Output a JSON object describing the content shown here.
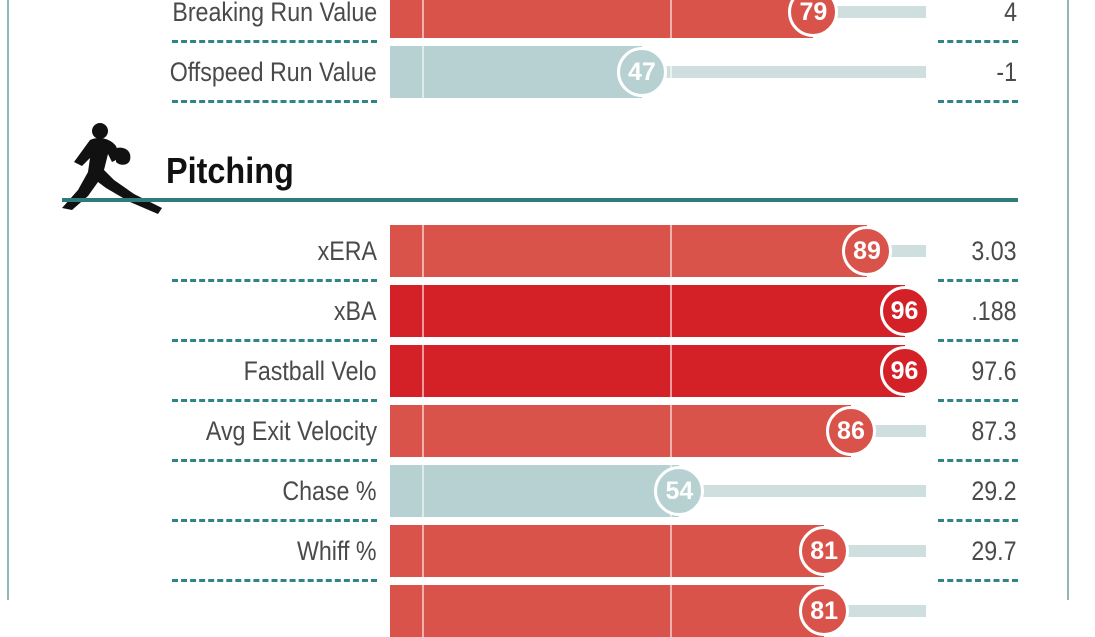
{
  "colors": {
    "frame": "#8fb7b5",
    "rule": "#2f7a7a",
    "dash": "#2f8585",
    "track": "#cfdfe0",
    "bar_above_average": "#d9534a",
    "bar_elite": "#d42027",
    "bar_average": "#b7d1d2"
  },
  "section": {
    "title": "Pitching",
    "icon": "pitcher-silhouette-icon"
  },
  "chart_data": {
    "type": "bar",
    "orientation": "horizontal",
    "value_scale": [
      0,
      100
    ],
    "groups": [
      {
        "name": "",
        "rows": [
          {
            "label": "Breaking Run Value",
            "percentile": 79,
            "value": "4"
          },
          {
            "label": "Offspeed Run Value",
            "percentile": 47,
            "value": "-1"
          }
        ]
      },
      {
        "name": "Pitching",
        "rows": [
          {
            "label": "xERA",
            "percentile": 89,
            "value": "3.03"
          },
          {
            "label": "xBA",
            "percentile": 96,
            "value": ".188"
          },
          {
            "label": "Fastball Velo",
            "percentile": 96,
            "value": "97.6"
          },
          {
            "label": "Avg Exit Velocity",
            "percentile": 86,
            "value": "87.3"
          },
          {
            "label": "Chase %",
            "percentile": 54,
            "value": "29.2"
          },
          {
            "label": "Whiff %",
            "percentile": 81,
            "value": "29.7"
          },
          {
            "label": "",
            "percentile": 81,
            "value": ""
          }
        ]
      }
    ]
  }
}
